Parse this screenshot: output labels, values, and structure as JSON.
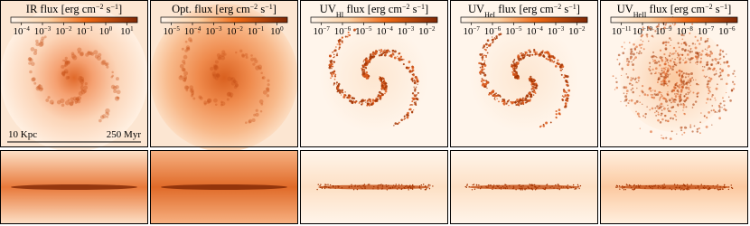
{
  "panels": [
    {
      "title": [
        {
          "t": "IR flux [erg cm"
        },
        {
          "sup": "−2"
        },
        {
          "t": " s"
        },
        {
          "sup": "−1"
        },
        {
          "t": "]"
        }
      ],
      "ticks": [
        {
          "base": "10",
          "exp": "−4"
        },
        {
          "base": "10",
          "exp": "−3"
        },
        {
          "base": "10",
          "exp": "−2"
        },
        {
          "base": "10",
          "exp": "−1"
        },
        {
          "base": "10",
          "exp": "0"
        },
        {
          "base": "10",
          "exp": "1"
        }
      ]
    },
    {
      "title": [
        {
          "t": "Opt. flux [erg cm"
        },
        {
          "sup": "−2"
        },
        {
          "t": " s"
        },
        {
          "sup": "−1"
        },
        {
          "t": "]"
        }
      ],
      "ticks": [
        {
          "base": "10",
          "exp": "−5"
        },
        {
          "base": "10",
          "exp": "−4"
        },
        {
          "base": "10",
          "exp": "−3"
        },
        {
          "base": "10",
          "exp": "−2"
        },
        {
          "base": "10",
          "exp": "−1"
        },
        {
          "base": "10",
          "exp": "0"
        }
      ]
    },
    {
      "title": [
        {
          "t": "UV"
        },
        {
          "sub": "HI"
        },
        {
          "t": " flux [erg cm"
        },
        {
          "sup": "−2"
        },
        {
          "t": " s"
        },
        {
          "sup": "−1"
        },
        {
          "t": "]"
        }
      ],
      "ticks": [
        {
          "base": "10",
          "exp": "−7"
        },
        {
          "base": "10",
          "exp": "−6"
        },
        {
          "base": "10",
          "exp": "−5"
        },
        {
          "base": "10",
          "exp": "−4"
        },
        {
          "base": "10",
          "exp": "−3"
        },
        {
          "base": "10",
          "exp": "−2"
        }
      ]
    },
    {
      "title": [
        {
          "t": "UV"
        },
        {
          "sub": "HeI"
        },
        {
          "t": " flux [erg cm"
        },
        {
          "sup": "−2"
        },
        {
          "t": " s"
        },
        {
          "sup": "−1"
        },
        {
          "t": "]"
        }
      ],
      "ticks": [
        {
          "base": "10",
          "exp": "−7"
        },
        {
          "base": "10",
          "exp": "−6"
        },
        {
          "base": "10",
          "exp": "−5"
        },
        {
          "base": "10",
          "exp": "−4"
        },
        {
          "base": "10",
          "exp": "−3"
        },
        {
          "base": "10",
          "exp": "−2"
        }
      ]
    },
    {
      "title": [
        {
          "t": "UV"
        },
        {
          "sub": "HeII"
        },
        {
          "t": " flux [erg cm"
        },
        {
          "sup": "−2"
        },
        {
          "t": " s"
        },
        {
          "sup": "−1"
        },
        {
          "t": "]"
        }
      ],
      "ticks": [
        {
          "base": "10",
          "exp": "−11"
        },
        {
          "base": "10",
          "exp": "−10"
        },
        {
          "base": "10",
          "exp": "−9"
        },
        {
          "base": "10",
          "exp": "−8"
        },
        {
          "base": "10",
          "exp": "−7"
        },
        {
          "base": "10",
          "exp": "−6"
        }
      ]
    }
  ],
  "scale_bar": {
    "length": "10 Kpc",
    "time": "250 Myr"
  }
}
